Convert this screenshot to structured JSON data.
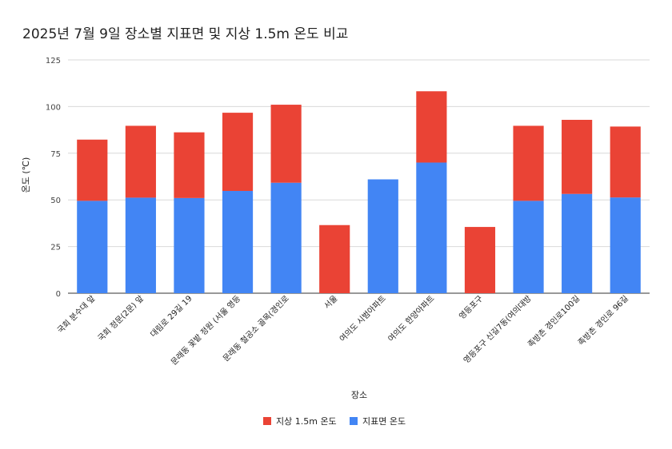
{
  "chart_data": {
    "type": "bar",
    "stacked": true,
    "title": "2025년 7월 9일 장소별 지표면 및 지상 1.5m 온도 비교",
    "xlabel": "장소",
    "ylabel": "온도 (℃)",
    "ylim": [
      0,
      125
    ],
    "yticks": [
      0,
      25,
      50,
      75,
      100,
      125
    ],
    "grid": true,
    "legend_position": "bottom",
    "categories": [
      "국회 분수대 앞",
      "국회 정문(2문) 앞",
      "대림로 29길 19",
      "문래동 꽃밭 정원 (서울 영등",
      "문래동 철공소 골목(경인로",
      "서울",
      "여의도 시범아파트",
      "여의도 한양아파트",
      "영등포구",
      "영등포구 신길7동(여의대방",
      "족방촌 경인로100길",
      "족방촌 경인로 96길"
    ],
    "series": [
      {
        "name": "지표면 온도",
        "color": "#4285f4",
        "values": [
          49.5,
          51.2,
          51.0,
          54.8,
          59.2,
          0,
          61.0,
          70.0,
          0,
          49.5,
          53.2,
          51.3
        ]
      },
      {
        "name": "지상 1.5m 온도",
        "color": "#ea4335",
        "values": [
          32.8,
          38.5,
          35.2,
          41.9,
          41.8,
          36.5,
          0,
          38.2,
          35.5,
          40.2,
          39.7,
          38.0
        ]
      }
    ],
    "legend_order": [
      "지상 1.5m 온도",
      "지표면 온도"
    ]
  }
}
